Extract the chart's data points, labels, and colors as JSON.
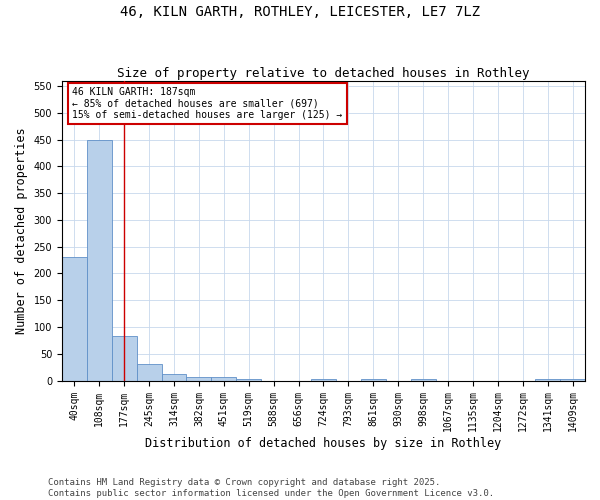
{
  "title": "46, KILN GARTH, ROTHLEY, LEICESTER, LE7 7LZ",
  "subtitle": "Size of property relative to detached houses in Rothley",
  "xlabel": "Distribution of detached houses by size in Rothley",
  "ylabel": "Number of detached properties",
  "bin_labels": [
    "40sqm",
    "108sqm",
    "177sqm",
    "245sqm",
    "314sqm",
    "382sqm",
    "451sqm",
    "519sqm",
    "588sqm",
    "656sqm",
    "724sqm",
    "793sqm",
    "861sqm",
    "930sqm",
    "998sqm",
    "1067sqm",
    "1135sqm",
    "1204sqm",
    "1272sqm",
    "1341sqm",
    "1409sqm"
  ],
  "bar_heights": [
    230,
    450,
    83,
    31,
    13,
    7,
    7,
    3,
    0,
    0,
    3,
    0,
    3,
    0,
    3,
    0,
    0,
    0,
    0,
    3,
    3
  ],
  "bar_color": "#b8d0ea",
  "bar_edge_color": "#6090c8",
  "property_line_index": 2,
  "property_line_color": "#cc0000",
  "annotation_text": "46 KILN GARTH: 187sqm\n← 85% of detached houses are smaller (697)\n15% of semi-detached houses are larger (125) →",
  "annotation_box_color": "#cc0000",
  "annotation_bg_color": "#ffffff",
  "ylim": [
    0,
    560
  ],
  "yticks": [
    0,
    50,
    100,
    150,
    200,
    250,
    300,
    350,
    400,
    450,
    500,
    550
  ],
  "footer_text": "Contains HM Land Registry data © Crown copyright and database right 2025.\nContains public sector information licensed under the Open Government Licence v3.0.",
  "title_fontsize": 10,
  "subtitle_fontsize": 9,
  "axis_label_fontsize": 8.5,
  "tick_fontsize": 7,
  "annotation_fontsize": 7,
  "footer_fontsize": 6.5,
  "background_color": "#ffffff",
  "grid_color": "#c8d8ec"
}
